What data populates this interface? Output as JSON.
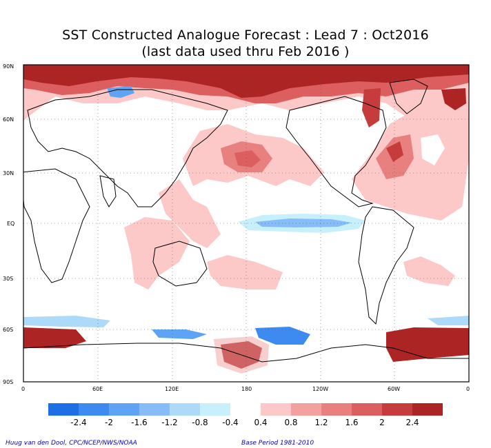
{
  "title": {
    "line1": "SST Constructed Analogue Forecast : Lead 7 : Oct2016",
    "line2": "(last data used thru Feb 2016 )"
  },
  "map": {
    "lat_ticks": [
      "90N",
      "60N",
      "30N",
      "EQ",
      "30S",
      "60S",
      "90S"
    ],
    "lon_ticks": [
      "0",
      "60E",
      "120E",
      "180",
      "120W",
      "60W",
      "0"
    ],
    "projection": "lat-lon",
    "gridlines": "dotted"
  },
  "colorbar": {
    "labels": [
      "-2.4",
      "-2",
      "-1.6",
      "-1.2",
      "-0.8",
      "-0.4",
      "0.4",
      "0.8",
      "1.2",
      "1.6",
      "2",
      "2.4"
    ],
    "negative_colors": [
      "#1e6fe6",
      "#3d8af0",
      "#5fa3f5",
      "#86bdf8",
      "#aedaf9",
      "#c8f0fc"
    ],
    "positive_colors": [
      "#fcc8c8",
      "#f2a0a0",
      "#e88080",
      "#dc5e5e",
      "#c63c3c",
      "#ad2424"
    ]
  },
  "footer": {
    "left": "Huug van den Dool, CPC/NCEP/NWS/NOAA",
    "right": "Base Period 1981-2010"
  }
}
